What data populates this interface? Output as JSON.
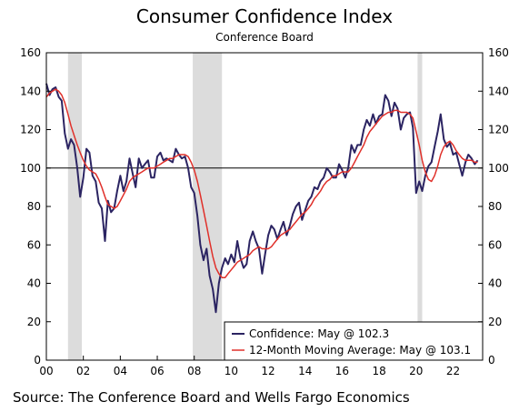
{
  "chart_data": {
    "type": "line",
    "title": "Consumer Confidence Index",
    "subtitle": "Conference Board",
    "source": "Source: The Conference Board and Wells Fargo Economics",
    "xlim": [
      2000,
      2023.6
    ],
    "ylim": [
      0,
      160
    ],
    "x_ticks": [
      {
        "value": 2000,
        "label": "00"
      },
      {
        "value": 2002,
        "label": "02"
      },
      {
        "value": 2004,
        "label": "04"
      },
      {
        "value": 2006,
        "label": "06"
      },
      {
        "value": 2008,
        "label": "08"
      },
      {
        "value": 2010,
        "label": "10"
      },
      {
        "value": 2012,
        "label": "12"
      },
      {
        "value": 2014,
        "label": "14"
      },
      {
        "value": 2016,
        "label": "16"
      },
      {
        "value": 2018,
        "label": "18"
      },
      {
        "value": 2020,
        "label": "20"
      },
      {
        "value": 2022,
        "label": "22"
      }
    ],
    "y_ticks": [
      0,
      20,
      40,
      60,
      80,
      100,
      120,
      140,
      160
    ],
    "reference_line": 100,
    "recessions": [
      [
        2001.17,
        2001.92
      ],
      [
        2007.92,
        2009.5
      ],
      [
        2020.08,
        2020.33
      ]
    ],
    "legend_position": "bottom-right",
    "colors": {
      "confidence": "#2b2462",
      "moving_average": "#e0302a",
      "recession": "#dcdcdc"
    },
    "series": [
      {
        "name": "Confidence: May @ 102.3",
        "x": [
          2000.0,
          2000.17,
          2000.33,
          2000.5,
          2000.67,
          2000.83,
          2001.0,
          2001.17,
          2001.33,
          2001.5,
          2001.67,
          2001.83,
          2002.0,
          2002.17,
          2002.33,
          2002.5,
          2002.67,
          2002.83,
          2003.0,
          2003.17,
          2003.33,
          2003.5,
          2003.67,
          2003.83,
          2004.0,
          2004.17,
          2004.33,
          2004.5,
          2004.67,
          2004.83,
          2005.0,
          2005.17,
          2005.33,
          2005.5,
          2005.67,
          2005.83,
          2006.0,
          2006.17,
          2006.33,
          2006.5,
          2006.67,
          2006.83,
          2007.0,
          2007.17,
          2007.33,
          2007.5,
          2007.67,
          2007.83,
          2008.0,
          2008.17,
          2008.33,
          2008.5,
          2008.67,
          2008.83,
          2009.0,
          2009.17,
          2009.33,
          2009.5,
          2009.67,
          2009.83,
          2010.0,
          2010.17,
          2010.33,
          2010.5,
          2010.67,
          2010.83,
          2011.0,
          2011.17,
          2011.33,
          2011.5,
          2011.67,
          2011.83,
          2012.0,
          2012.17,
          2012.33,
          2012.5,
          2012.67,
          2012.83,
          2013.0,
          2013.17,
          2013.33,
          2013.5,
          2013.67,
          2013.83,
          2014.0,
          2014.17,
          2014.33,
          2014.5,
          2014.67,
          2014.83,
          2015.0,
          2015.17,
          2015.33,
          2015.5,
          2015.67,
          2015.83,
          2016.0,
          2016.17,
          2016.33,
          2016.5,
          2016.67,
          2016.83,
          2017.0,
          2017.17,
          2017.33,
          2017.5,
          2017.67,
          2017.83,
          2018.0,
          2018.17,
          2018.33,
          2018.5,
          2018.67,
          2018.83,
          2019.0,
          2019.17,
          2019.33,
          2019.5,
          2019.67,
          2019.83,
          2020.0,
          2020.17,
          2020.33,
          2020.5,
          2020.67,
          2020.83,
          2021.0,
          2021.17,
          2021.33,
          2021.5,
          2021.67,
          2021.83,
          2022.0,
          2022.17,
          2022.33,
          2022.5,
          2022.67,
          2022.83,
          2023.0,
          2023.17,
          2023.33
        ],
        "values": [
          144,
          138,
          141,
          142,
          137,
          135,
          118,
          110,
          115,
          112,
          100,
          85,
          95,
          110,
          108,
          96,
          93,
          82,
          79,
          62,
          83,
          77,
          79,
          88,
          96,
          88,
          93,
          105,
          97,
          90,
          105,
          100,
          102,
          104,
          95,
          95,
          106,
          108,
          104,
          105,
          104,
          103,
          110,
          107,
          105,
          106,
          100,
          90,
          87,
          75,
          60,
          52,
          58,
          44,
          37,
          25,
          40,
          48,
          53,
          50,
          55,
          51,
          62,
          53,
          48,
          50,
          62,
          67,
          62,
          58,
          45,
          55,
          65,
          70,
          68,
          63,
          68,
          72,
          65,
          70,
          76,
          80,
          82,
          73,
          78,
          83,
          85,
          90,
          89,
          93,
          95,
          100,
          98,
          95,
          95,
          102,
          99,
          95,
          100,
          112,
          108,
          112,
          112,
          120,
          125,
          122,
          128,
          123,
          127,
          128,
          138,
          135,
          127,
          134,
          131,
          120,
          126,
          128,
          129,
          121,
          87,
          93,
          88,
          96,
          101,
          103,
          111,
          119,
          128,
          115,
          111,
          113,
          107,
          108,
          102,
          96,
          103,
          107,
          105,
          102,
          104
        ]
      },
      {
        "name": "12-Month Moving Average: May @ 103.1",
        "x": [
          2000.0,
          2000.17,
          2000.33,
          2000.5,
          2000.67,
          2000.83,
          2001.0,
          2001.17,
          2001.33,
          2001.5,
          2001.67,
          2001.83,
          2002.0,
          2002.17,
          2002.33,
          2002.5,
          2002.67,
          2002.83,
          2003.0,
          2003.17,
          2003.33,
          2003.5,
          2003.67,
          2003.83,
          2004.0,
          2004.17,
          2004.33,
          2004.5,
          2004.67,
          2004.83,
          2005.0,
          2005.17,
          2005.33,
          2005.5,
          2005.67,
          2005.83,
          2006.0,
          2006.17,
          2006.33,
          2006.5,
          2006.67,
          2006.83,
          2007.0,
          2007.17,
          2007.33,
          2007.5,
          2007.67,
          2007.83,
          2008.0,
          2008.17,
          2008.33,
          2008.5,
          2008.67,
          2008.83,
          2009.0,
          2009.17,
          2009.33,
          2009.5,
          2009.67,
          2009.83,
          2010.0,
          2010.17,
          2010.33,
          2010.5,
          2010.67,
          2010.83,
          2011.0,
          2011.17,
          2011.33,
          2011.5,
          2011.67,
          2011.83,
          2012.0,
          2012.17,
          2012.33,
          2012.5,
          2012.67,
          2012.83,
          2013.0,
          2013.17,
          2013.33,
          2013.5,
          2013.67,
          2013.83,
          2014.0,
          2014.17,
          2014.33,
          2014.5,
          2014.67,
          2014.83,
          2015.0,
          2015.17,
          2015.33,
          2015.5,
          2015.67,
          2015.83,
          2016.0,
          2016.17,
          2016.33,
          2016.5,
          2016.67,
          2016.83,
          2017.0,
          2017.17,
          2017.33,
          2017.5,
          2017.67,
          2017.83,
          2018.0,
          2018.17,
          2018.33,
          2018.5,
          2018.67,
          2018.83,
          2019.0,
          2019.17,
          2019.33,
          2019.5,
          2019.67,
          2019.83,
          2020.0,
          2020.17,
          2020.33,
          2020.5,
          2020.67,
          2020.83,
          2021.0,
          2021.17,
          2021.33,
          2021.5,
          2021.67,
          2021.83,
          2022.0,
          2022.17,
          2022.33,
          2022.5,
          2022.67,
          2022.83,
          2023.0,
          2023.17,
          2023.33
        ],
        "values": [
          137,
          139,
          140,
          141,
          140,
          138,
          134,
          128,
          122,
          117,
          112,
          108,
          104,
          101,
          99,
          98,
          97,
          94,
          90,
          85,
          81,
          80,
          79,
          80,
          83,
          86,
          89,
          93,
          95,
          96,
          97,
          98,
          99,
          100,
          100,
          100,
          101,
          102,
          103,
          104,
          105,
          105,
          106,
          107,
          107,
          107,
          106,
          103,
          99,
          93,
          86,
          78,
          70,
          62,
          54,
          48,
          45,
          43,
          43,
          45,
          47,
          49,
          51,
          52,
          53,
          54,
          55,
          57,
          58,
          59,
          58,
          58,
          58,
          59,
          61,
          63,
          65,
          66,
          67,
          68,
          70,
          72,
          74,
          76,
          77,
          79,
          81,
          84,
          86,
          88,
          91,
          93,
          94,
          96,
          96,
          97,
          98,
          98,
          98,
          100,
          103,
          106,
          109,
          112,
          116,
          119,
          121,
          123,
          125,
          127,
          128,
          129,
          129,
          130,
          130,
          129,
          129,
          129,
          128,
          126,
          119,
          112,
          104,
          98,
          94,
          93,
          96,
          101,
          107,
          111,
          113,
          114,
          112,
          109,
          107,
          105,
          104,
          104,
          104,
          103,
          103
        ]
      }
    ]
  }
}
